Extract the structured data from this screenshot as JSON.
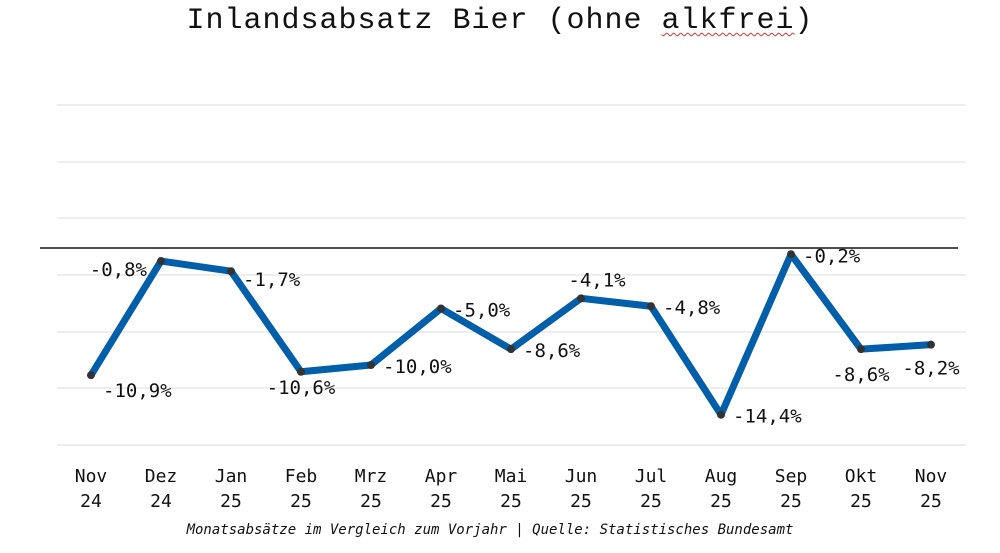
{
  "chart_data": {
    "type": "line",
    "title_main": "Inlandsabsatz Bier (ohne ",
    "title_marked": "alkfrei",
    "title_end": ")",
    "categories": [
      [
        "Nov",
        "24"
      ],
      [
        "Dez",
        "24"
      ],
      [
        "Jan",
        "25"
      ],
      [
        "Feb",
        "25"
      ],
      [
        "Mrz",
        "25"
      ],
      [
        "Apr",
        "25"
      ],
      [
        "Mai",
        "25"
      ],
      [
        "Jun",
        "25"
      ],
      [
        "Jul",
        "25"
      ],
      [
        "Aug",
        "25"
      ],
      [
        "Sep",
        "25"
      ],
      [
        "Okt",
        "25"
      ],
      [
        "Nov",
        "25"
      ]
    ],
    "values": [
      -10.9,
      -0.8,
      -1.7,
      -10.6,
      -10.0,
      -5.0,
      -8.6,
      -4.1,
      -4.8,
      -14.4,
      -0.2,
      -8.6,
      -8.2
    ],
    "data_labels": [
      "-10,9%",
      "-0,8%",
      "-1,7%",
      "-10,6%",
      "-10,0%",
      "-5,0%",
      "-8,6%",
      "-4,1%",
      "-4,8%",
      "-14,4%",
      "-0,2%",
      "-8,6%",
      "-8,2%"
    ],
    "ylim": [
      -17.5,
      12.5
    ],
    "zero_line": true,
    "grid": true,
    "line_color": "#005fa8",
    "marker_color": "#333333",
    "footer": "Monatsabsätze im Vergleich zum Vorjahr  |   Quelle: Statistisches Bundesamt"
  }
}
